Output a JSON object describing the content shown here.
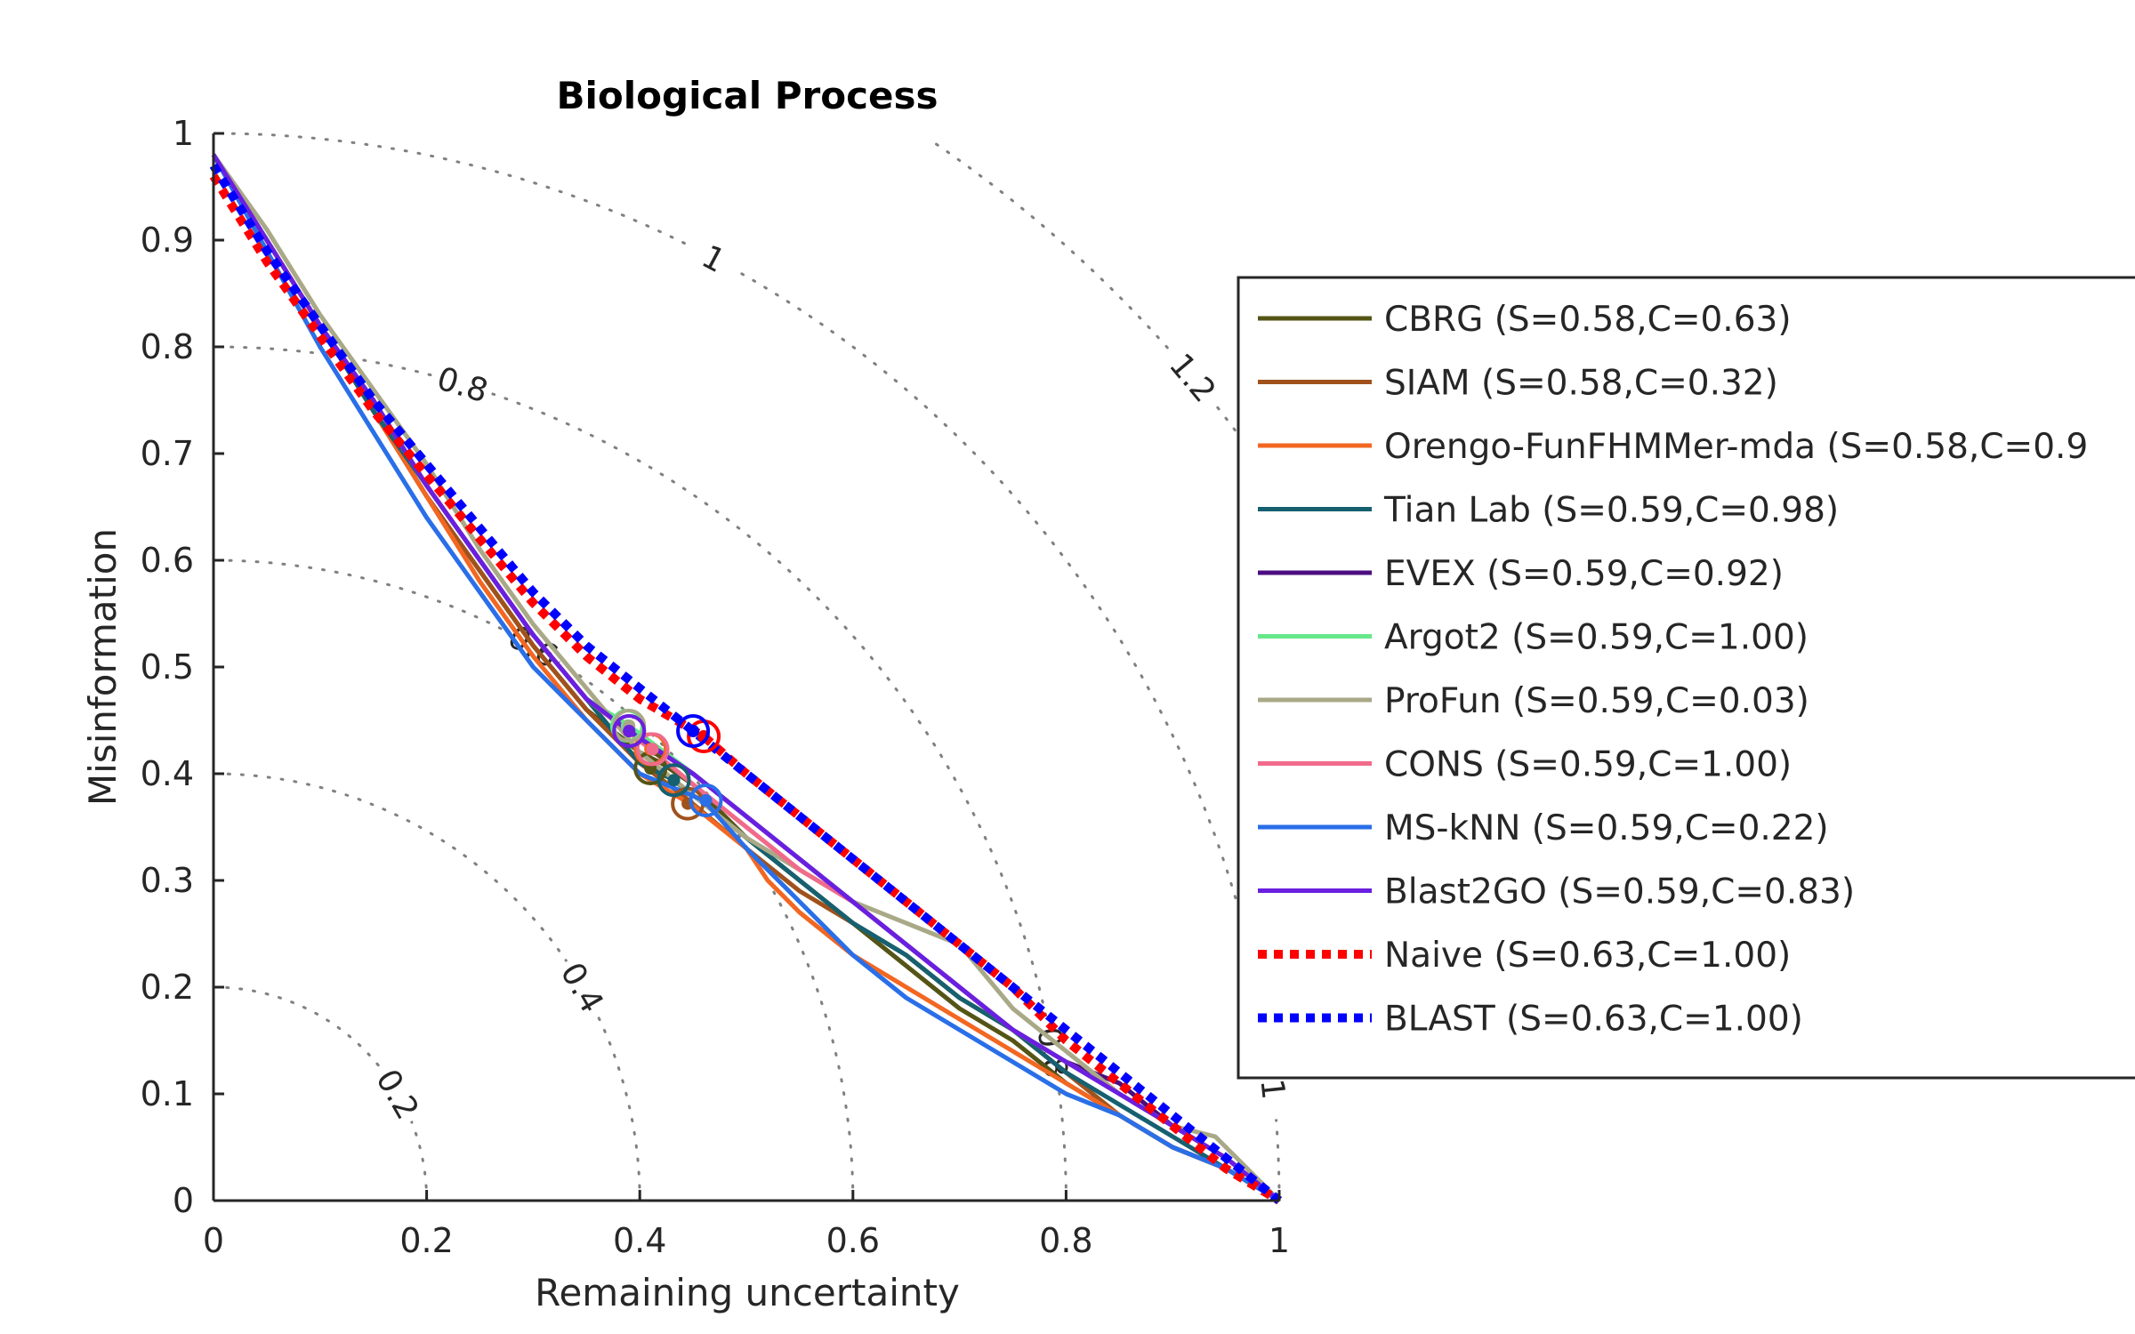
{
  "chart_data": {
    "type": "line",
    "title": "Biological Process",
    "xlabel": "Remaining uncertainty",
    "ylabel": "Misinformation",
    "xlim": [
      0,
      1
    ],
    "ylim": [
      0,
      1
    ],
    "xticks": [
      "0",
      "0.2",
      "0.4",
      "0.6",
      "0.8",
      "1"
    ],
    "yticks": [
      "0",
      "0.1",
      "0.2",
      "0.3",
      "0.4",
      "0.5",
      "0.6",
      "0.7",
      "0.8",
      "0.9",
      "1"
    ],
    "grid": "off",
    "legend": "right",
    "contours": {
      "description_free": true,
      "levels": [
        {
          "r": 0.2,
          "label": "0.2",
          "label_angle": 30
        },
        {
          "r": 0.4,
          "label": "0.4",
          "label_angle": 30
        },
        {
          "r": 0.6,
          "label": "0.6",
          "label_angle": 60
        },
        {
          "r": 0.8,
          "label": "0.8",
          "label_angle": 73
        },
        {
          "r": 0.8,
          "label": "0.8",
          "label_angle": 10
        },
        {
          "r": 1.0,
          "label": "1",
          "label_angle": 62
        },
        {
          "r": 1.0,
          "label": "1",
          "label_angle": 6
        },
        {
          "r": 1.2,
          "label": "1.2",
          "label_angle": 40
        }
      ],
      "color": "#808080"
    },
    "series": [
      {
        "name": "CBRG (S=0.58,C=0.63)",
        "color": "#545416",
        "style": "solid",
        "x": [
          0.0,
          0.05,
          0.1,
          0.15,
          0.2,
          0.25,
          0.3,
          0.35,
          0.4,
          0.42,
          0.45,
          0.5,
          0.55,
          0.6,
          0.65,
          0.7,
          0.75,
          0.8,
          0.85,
          0.9,
          0.95,
          1.0
        ],
        "y": [
          0.98,
          0.9,
          0.82,
          0.74,
          0.66,
          0.59,
          0.52,
          0.46,
          0.42,
          0.41,
          0.39,
          0.34,
          0.3,
          0.26,
          0.22,
          0.18,
          0.15,
          0.11,
          0.08,
          0.05,
          0.03,
          0.0
        ],
        "point": [
          0.41,
          0.405
        ]
      },
      {
        "name": "SIAM (S=0.58,C=0.32)",
        "color": "#a0521c",
        "style": "solid",
        "x": [
          0.0,
          0.05,
          0.1,
          0.15,
          0.2,
          0.25,
          0.3,
          0.35,
          0.4,
          0.44,
          0.5,
          0.55,
          0.6,
          0.65,
          0.7,
          0.75,
          0.8,
          0.85,
          0.9,
          0.95,
          1.0
        ],
        "y": [
          0.98,
          0.9,
          0.82,
          0.74,
          0.66,
          0.59,
          0.52,
          0.46,
          0.41,
          0.38,
          0.33,
          0.29,
          0.26,
          0.23,
          0.19,
          0.16,
          0.12,
          0.08,
          0.05,
          0.03,
          0.0
        ],
        "point": [
          0.445,
          0.372
        ]
      },
      {
        "name": "Orengo-FunFHMMer-mda (S=0.58,C=0.9",
        "color": "#f26722",
        "style": "solid",
        "x": [
          0.0,
          0.05,
          0.1,
          0.15,
          0.2,
          0.25,
          0.3,
          0.35,
          0.4,
          0.45,
          0.5,
          0.52,
          0.55,
          0.6,
          0.65,
          0.7,
          0.75,
          0.8,
          0.85,
          0.9,
          0.95,
          1.0
        ],
        "y": [
          0.98,
          0.9,
          0.82,
          0.74,
          0.66,
          0.58,
          0.51,
          0.45,
          0.4,
          0.37,
          0.33,
          0.3,
          0.27,
          0.23,
          0.2,
          0.17,
          0.14,
          0.11,
          0.08,
          0.05,
          0.03,
          0.0
        ],
        "point": [
          0.41,
          0.423
        ]
      },
      {
        "name": "Tian Lab (S=0.59,C=0.98)",
        "color": "#166070",
        "style": "solid",
        "x": [
          0.0,
          0.05,
          0.1,
          0.15,
          0.2,
          0.25,
          0.3,
          0.35,
          0.4,
          0.43,
          0.45,
          0.5,
          0.55,
          0.6,
          0.65,
          0.7,
          0.75,
          0.8,
          0.85,
          0.9,
          0.95,
          1.0
        ],
        "y": [
          0.98,
          0.9,
          0.82,
          0.74,
          0.67,
          0.6,
          0.53,
          0.47,
          0.41,
          0.395,
          0.38,
          0.34,
          0.3,
          0.26,
          0.23,
          0.19,
          0.16,
          0.12,
          0.09,
          0.06,
          0.03,
          0.0
        ],
        "point": [
          0.432,
          0.394
        ]
      },
      {
        "name": "EVEX (S=0.59,C=0.92)",
        "color": "#4b0d80",
        "style": "solid",
        "x": [
          0.0,
          0.05,
          0.1,
          0.15,
          0.2,
          0.25,
          0.3,
          0.35,
          0.39,
          0.45,
          0.5,
          0.55,
          0.6,
          0.65,
          0.7,
          0.75,
          0.8,
          0.85,
          0.9,
          0.95,
          1.0
        ],
        "y": [
          0.98,
          0.9,
          0.82,
          0.75,
          0.67,
          0.6,
          0.53,
          0.47,
          0.44,
          0.4,
          0.36,
          0.32,
          0.28,
          0.24,
          0.2,
          0.16,
          0.13,
          0.11,
          0.07,
          0.04,
          0.0
        ],
        "point": [
          0.39,
          0.44
        ]
      },
      {
        "name": "Argot2 (S=0.59,C=1.00)",
        "color": "#66e88a",
        "style": "solid",
        "x": [
          0.0,
          0.05,
          0.1,
          0.15,
          0.2,
          0.25,
          0.3,
          0.35,
          0.39,
          0.45,
          0.5,
          0.55,
          0.6,
          0.65,
          0.7,
          0.75,
          0.8,
          0.85,
          0.9,
          0.95,
          1.0
        ],
        "y": [
          0.98,
          0.9,
          0.82,
          0.75,
          0.67,
          0.6,
          0.53,
          0.47,
          0.445,
          0.4,
          0.36,
          0.32,
          0.28,
          0.24,
          0.2,
          0.16,
          0.13,
          0.1,
          0.07,
          0.04,
          0.0
        ],
        "point": [
          0.388,
          0.445
        ]
      },
      {
        "name": "ProFun (S=0.59,C=0.03)",
        "color": "#a9a987",
        "style": "solid",
        "x": [
          0.0,
          0.05,
          0.1,
          0.15,
          0.2,
          0.25,
          0.3,
          0.35,
          0.4,
          0.45,
          0.5,
          0.55,
          0.6,
          0.65,
          0.7,
          0.75,
          0.8,
          0.85,
          0.9,
          0.94,
          0.96,
          1.0
        ],
        "y": [
          0.98,
          0.91,
          0.83,
          0.76,
          0.69,
          0.61,
          0.54,
          0.48,
          0.42,
          0.38,
          0.34,
          0.31,
          0.28,
          0.26,
          0.24,
          0.18,
          0.14,
          0.1,
          0.07,
          0.06,
          0.04,
          0.0
        ],
        "point": [
          0.39,
          0.445
        ]
      },
      {
        "name": "CONS (S=0.59,C=1.00)",
        "color": "#f06b8a",
        "style": "solid",
        "x": [
          0.0,
          0.05,
          0.1,
          0.15,
          0.2,
          0.25,
          0.3,
          0.35,
          0.41,
          0.45,
          0.5,
          0.55,
          0.6,
          0.65,
          0.7,
          0.75,
          0.8,
          0.85,
          0.9,
          0.95,
          1.0
        ],
        "y": [
          0.98,
          0.9,
          0.82,
          0.75,
          0.67,
          0.6,
          0.53,
          0.47,
          0.423,
          0.39,
          0.35,
          0.31,
          0.28,
          0.24,
          0.2,
          0.16,
          0.13,
          0.1,
          0.07,
          0.04,
          0.0
        ],
        "point": [
          0.412,
          0.423
        ]
      },
      {
        "name": "MS-kNN (S=0.59,C=0.22)",
        "color": "#2a6fe8",
        "style": "solid",
        "x": [
          0.0,
          0.05,
          0.1,
          0.15,
          0.2,
          0.25,
          0.3,
          0.35,
          0.4,
          0.46,
          0.5,
          0.55,
          0.6,
          0.65,
          0.7,
          0.75,
          0.8,
          0.85,
          0.9,
          0.95,
          1.0
        ],
        "y": [
          0.98,
          0.89,
          0.8,
          0.72,
          0.64,
          0.57,
          0.5,
          0.45,
          0.4,
          0.375,
          0.33,
          0.28,
          0.23,
          0.19,
          0.16,
          0.13,
          0.1,
          0.08,
          0.05,
          0.03,
          0.0
        ],
        "point": [
          0.462,
          0.375
        ]
      },
      {
        "name": "Blast2GO (S=0.59,C=0.83)",
        "color": "#6a1fe0",
        "style": "solid",
        "x": [
          0.0,
          0.05,
          0.1,
          0.15,
          0.2,
          0.25,
          0.3,
          0.35,
          0.39,
          0.45,
          0.5,
          0.55,
          0.6,
          0.65,
          0.7,
          0.75,
          0.8,
          0.85,
          0.9,
          0.95,
          1.0
        ],
        "y": [
          0.98,
          0.9,
          0.82,
          0.75,
          0.67,
          0.6,
          0.53,
          0.47,
          0.44,
          0.4,
          0.36,
          0.32,
          0.28,
          0.24,
          0.2,
          0.16,
          0.13,
          0.1,
          0.07,
          0.04,
          0.0
        ],
        "point": [
          0.39,
          0.44
        ]
      },
      {
        "name": "Naive (S=0.63,C=1.00)",
        "color": "#ff0000",
        "style": "dotted",
        "x": [
          0.0,
          0.05,
          0.1,
          0.15,
          0.2,
          0.25,
          0.3,
          0.35,
          0.4,
          0.46,
          0.5,
          0.55,
          0.6,
          0.65,
          0.7,
          0.75,
          0.8,
          0.85,
          0.9,
          0.95,
          1.0
        ],
        "y": [
          0.96,
          0.88,
          0.81,
          0.74,
          0.68,
          0.62,
          0.56,
          0.51,
          0.47,
          0.435,
          0.4,
          0.36,
          0.32,
          0.28,
          0.24,
          0.2,
          0.15,
          0.11,
          0.07,
          0.03,
          0.0
        ],
        "point": [
          0.46,
          0.435
        ]
      },
      {
        "name": "BLAST (S=0.63,C=1.00)",
        "color": "#0000ff",
        "style": "dotted",
        "x": [
          0.0,
          0.05,
          0.1,
          0.15,
          0.2,
          0.25,
          0.3,
          0.35,
          0.4,
          0.45,
          0.5,
          0.55,
          0.6,
          0.65,
          0.7,
          0.75,
          0.8,
          0.85,
          0.9,
          0.95,
          1.0
        ],
        "y": [
          0.97,
          0.89,
          0.82,
          0.75,
          0.69,
          0.63,
          0.57,
          0.52,
          0.48,
          0.44,
          0.4,
          0.36,
          0.32,
          0.28,
          0.24,
          0.2,
          0.16,
          0.12,
          0.08,
          0.04,
          0.0
        ],
        "point": [
          0.45,
          0.44
        ]
      }
    ]
  }
}
